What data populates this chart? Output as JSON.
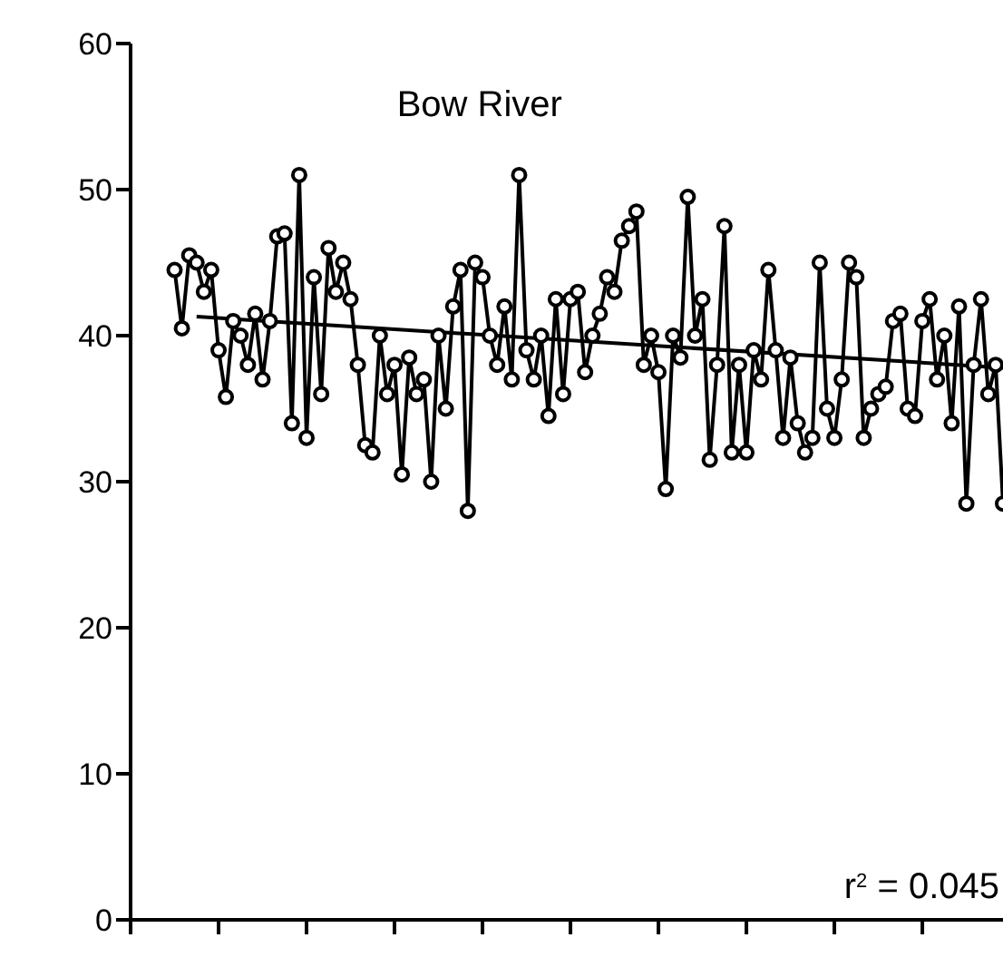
{
  "chart_data": {
    "type": "line",
    "title": "Bow River",
    "annotations": [
      "r$^{2}$ = 0.045"
    ],
    "categories": [
      null,
      null,
      null,
      null,
      null,
      null,
      null,
      null,
      null,
      null,
      null,
      null,
      null,
      null,
      null,
      null,
      null,
      null,
      null,
      null,
      null,
      null,
      null,
      null,
      null,
      null,
      null,
      null,
      null,
      null,
      null,
      null,
      null,
      null,
      null,
      null,
      null,
      null,
      null,
      null,
      null,
      null,
      null,
      null,
      null,
      null,
      null,
      null,
      null,
      null,
      null,
      null,
      null,
      null,
      null,
      null,
      null,
      null,
      null,
      null,
      null,
      null,
      null,
      null,
      null,
      null,
      null,
      null,
      null,
      null,
      null,
      null,
      null,
      null,
      null,
      null,
      null,
      null,
      null,
      null,
      null,
      null,
      null,
      null,
      null,
      null,
      null,
      null,
      null,
      null,
      null,
      null,
      null,
      null,
      null,
      null,
      null,
      null,
      null,
      null,
      null,
      null,
      null,
      null,
      null,
      null,
      null,
      null,
      null,
      null,
      null,
      null,
      null,
      null
    ],
    "ylim": [
      0,
      60
    ],
    "yticks": [
      0,
      10,
      20,
      30,
      40,
      50,
      60
    ],
    "marker": "circle",
    "line_style": "solid",
    "series": [
      {
        "color": "#000000",
        "values": [
          44.5,
          40.5,
          45.5,
          45,
          43,
          44.5,
          39,
          35.8,
          41,
          40,
          38,
          41.5,
          37,
          41,
          46.8,
          47,
          34,
          51,
          33,
          44,
          36,
          46,
          43,
          45,
          42.5,
          38,
          32.5,
          32,
          40,
          36,
          38,
          30.5,
          38.5,
          36,
          37,
          30,
          40,
          35,
          42,
          44.5,
          28,
          45,
          44,
          40,
          38,
          42,
          37,
          51,
          39,
          37,
          40,
          34.5,
          42.5,
          36,
          42.5,
          43,
          37.5,
          40,
          41.5,
          44,
          43,
          46.5,
          47.5,
          48.5,
          38,
          40,
          37.5,
          29.5,
          40,
          38.5,
          49.5,
          40,
          42.5,
          31.5,
          38,
          47.5,
          32,
          38,
          32,
          39,
          37,
          44.5,
          39,
          33,
          38.5,
          34,
          32,
          33,
          45,
          35,
          33,
          37,
          45,
          44,
          33,
          35,
          36,
          36.5,
          41,
          41.5,
          35,
          34.5,
          41,
          42.5,
          37,
          40,
          34,
          42,
          28.5,
          38,
          42.5,
          36,
          38,
          28.5
        ]
      },
      {
        "type": "line",
        "marker": "none",
        "color": "#000000",
        "values": [
          null,
          null,
          null,
          41.3,
          null,
          null,
          null,
          null,
          null,
          null,
          null,
          null,
          null,
          null,
          null,
          null,
          null,
          null,
          null,
          null,
          null,
          null,
          null,
          null,
          null,
          null,
          null,
          null,
          null,
          null,
          null,
          null,
          null,
          null,
          null,
          null,
          null,
          null,
          null,
          null,
          null,
          null,
          null,
          null,
          null,
          null,
          null,
          null,
          null,
          null,
          null,
          null,
          null,
          null,
          null,
          null,
          null,
          null,
          null,
          null,
          null,
          null,
          null,
          null,
          null,
          null,
          null,
          null,
          null,
          null,
          null,
          null,
          null,
          null,
          null,
          null,
          null,
          null,
          null,
          null,
          null,
          null,
          null,
          null,
          null,
          null,
          null,
          null,
          null,
          null,
          null,
          null,
          null,
          null,
          null,
          null,
          null,
          null,
          null,
          null,
          null,
          null,
          null,
          null,
          null,
          null,
          null,
          null,
          null,
          null,
          null,
          null,
          null,
          37.8
        ]
      }
    ]
  }
}
